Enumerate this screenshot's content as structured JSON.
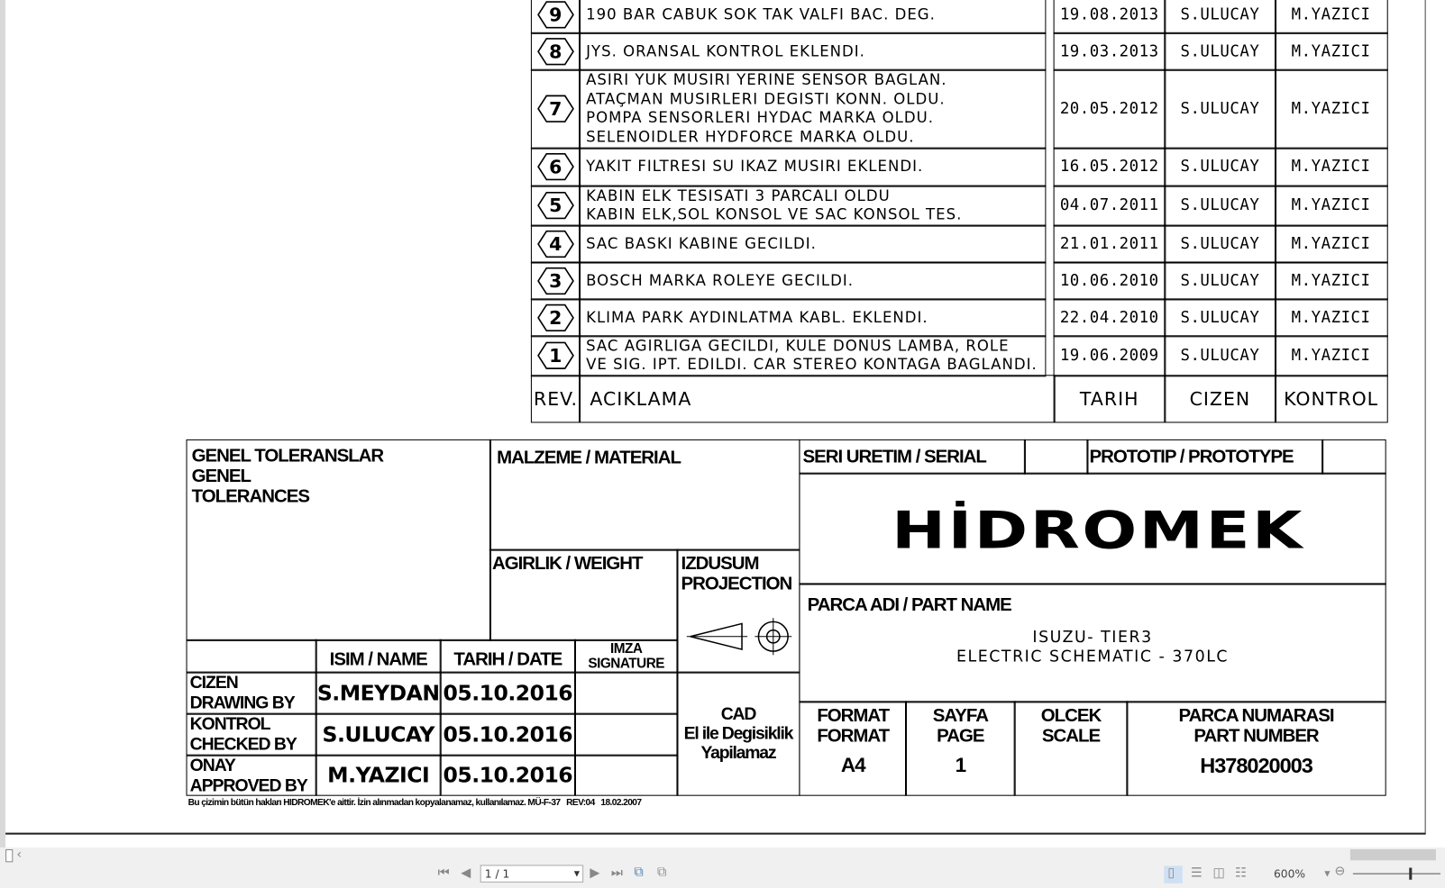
{
  "revisions": {
    "rows": [
      {
        "rev": "9",
        "desc": "190 BAR CABUK SOK TAK VALFI BAC. DEG.",
        "date": "19.08.2013",
        "drawn": "S.ULUCAY",
        "checked": "M.YAZICI"
      },
      {
        "rev": "8",
        "desc": "JYS. ORANSAL KONTROL EKLENDI.",
        "date": "19.03.2013",
        "drawn": "S.ULUCAY",
        "checked": "M.YAZICI"
      },
      {
        "rev": "7",
        "desc": "ASIRI YUK MUSIRI YERINE SENSOR BAGLAN.\nATAÇMAN MUSIRLERI DEGISTI KONN. OLDU.\nPOMPA SENSORLERI HYDAC MARKA OLDU.\nSELENOIDLER HYDFORCE MARKA OLDU.",
        "date": "20.05.2012",
        "drawn": "S.ULUCAY",
        "checked": "M.YAZICI"
      },
      {
        "rev": "6",
        "desc": "YAKIT FILTRESI SU IKAZ MUSIRI EKLENDI.",
        "date": "16.05.2012",
        "drawn": "S.ULUCAY",
        "checked": "M.YAZICI"
      },
      {
        "rev": "5",
        "desc": "KABIN ELK TESISATI 3 PARCALI OLDU\nKABIN ELK,SOL KONSOL VE SAC KONSOL TES.",
        "date": "04.07.2011",
        "drawn": "S.ULUCAY",
        "checked": "M.YAZICI"
      },
      {
        "rev": "4",
        "desc": "SAC BASKI KABINE GECILDI.",
        "date": "21.01.2011",
        "drawn": "S.ULUCAY",
        "checked": "M.YAZICI"
      },
      {
        "rev": "3",
        "desc": "BOSCH MARKA ROLEYE GECILDI.",
        "date": "10.06.2010",
        "drawn": "S.ULUCAY",
        "checked": "M.YAZICI"
      },
      {
        "rev": "2",
        "desc": "KLIMA PARK AYDINLATMA KABL. EKLENDI.",
        "date": "22.04.2010",
        "drawn": "S.ULUCAY",
        "checked": "M.YAZICI"
      },
      {
        "rev": "1",
        "desc": "SAC AGIRLIGA GECILDI, KULE DONUS LAMBA, ROLE\nVE SIG. IPT. EDILDI. CAR STEREO KONTAGA BAGLANDI.",
        "date": "19.06.2009",
        "drawn": "S.ULUCAY",
        "checked": "M.YAZICI"
      }
    ],
    "header": {
      "rev": "REV.",
      "desc": "ACIKLAMA",
      "date": "TARIH",
      "drawn": "CIZEN",
      "checked": "KONTROL"
    }
  },
  "title_block": {
    "tolerances": "GENEL TOLERANSLAR\nGENEL\nTOLERANCES",
    "material": "MALZEME / MATERIAL",
    "weight": "AGIRLIK / WEIGHT",
    "projection": "IZDUSUM\nPROJECTION",
    "name_header": "ISIM / NAME",
    "date_header": "TARIH / DATE",
    "signature_header": "IMZA\nSIGNATURE",
    "drawn_label": "CIZEN\nDRAWING BY",
    "drawn_name": "S.MEYDAN",
    "drawn_date": "05.10.2016",
    "checked_label": "KONTROL\nCHECKED BY",
    "checked_name": "S.ULUCAY",
    "checked_date": "05.10.2016",
    "approved_label": "ONAY\nAPPROVED BY",
    "approved_name": "M.YAZICI",
    "approved_date": "05.10.2016",
    "cad_note": "CAD\nEl ile Degisiklik\nYapilamaz",
    "serial": "SERI URETIM / SERIAL",
    "prototype": "PROTOTIP / PROTOTYPE",
    "logo": "HİDROMEK",
    "part_name_label": "PARCA ADI / PART NAME",
    "part_name": "ISUZU- TIER3\nELECTRIC SCHEMATIC - 370LC",
    "format_label": "FORMAT\nFORMAT",
    "format_value": "A4",
    "page_label": "SAYFA\nPAGE",
    "page_value": "1",
    "scale_label": "OLCEK\nSCALE",
    "part_number_label": "PARCA NUMARASI\nPART NUMBER",
    "part_number": "H378020003",
    "footer_note": "Bu çizimin bütün hakları HIDROMEK'e aittir. İzin alınmadan kopyalanamaz, kullanılamaz. MÜ-F-37   REV:04   18.02.2007"
  },
  "viewer": {
    "page_input": "1 / 1",
    "zoom": "600%",
    "icons": [
      "first-page-icon",
      "prev-page-icon",
      "next-page-icon",
      "last-page-icon",
      "rotate-icon",
      "extract-icon",
      "single-page-view-icon",
      "continuous-view-icon",
      "two-page-view-icon",
      "continuous-two-page-icon",
      "zoom-out-icon"
    ]
  }
}
